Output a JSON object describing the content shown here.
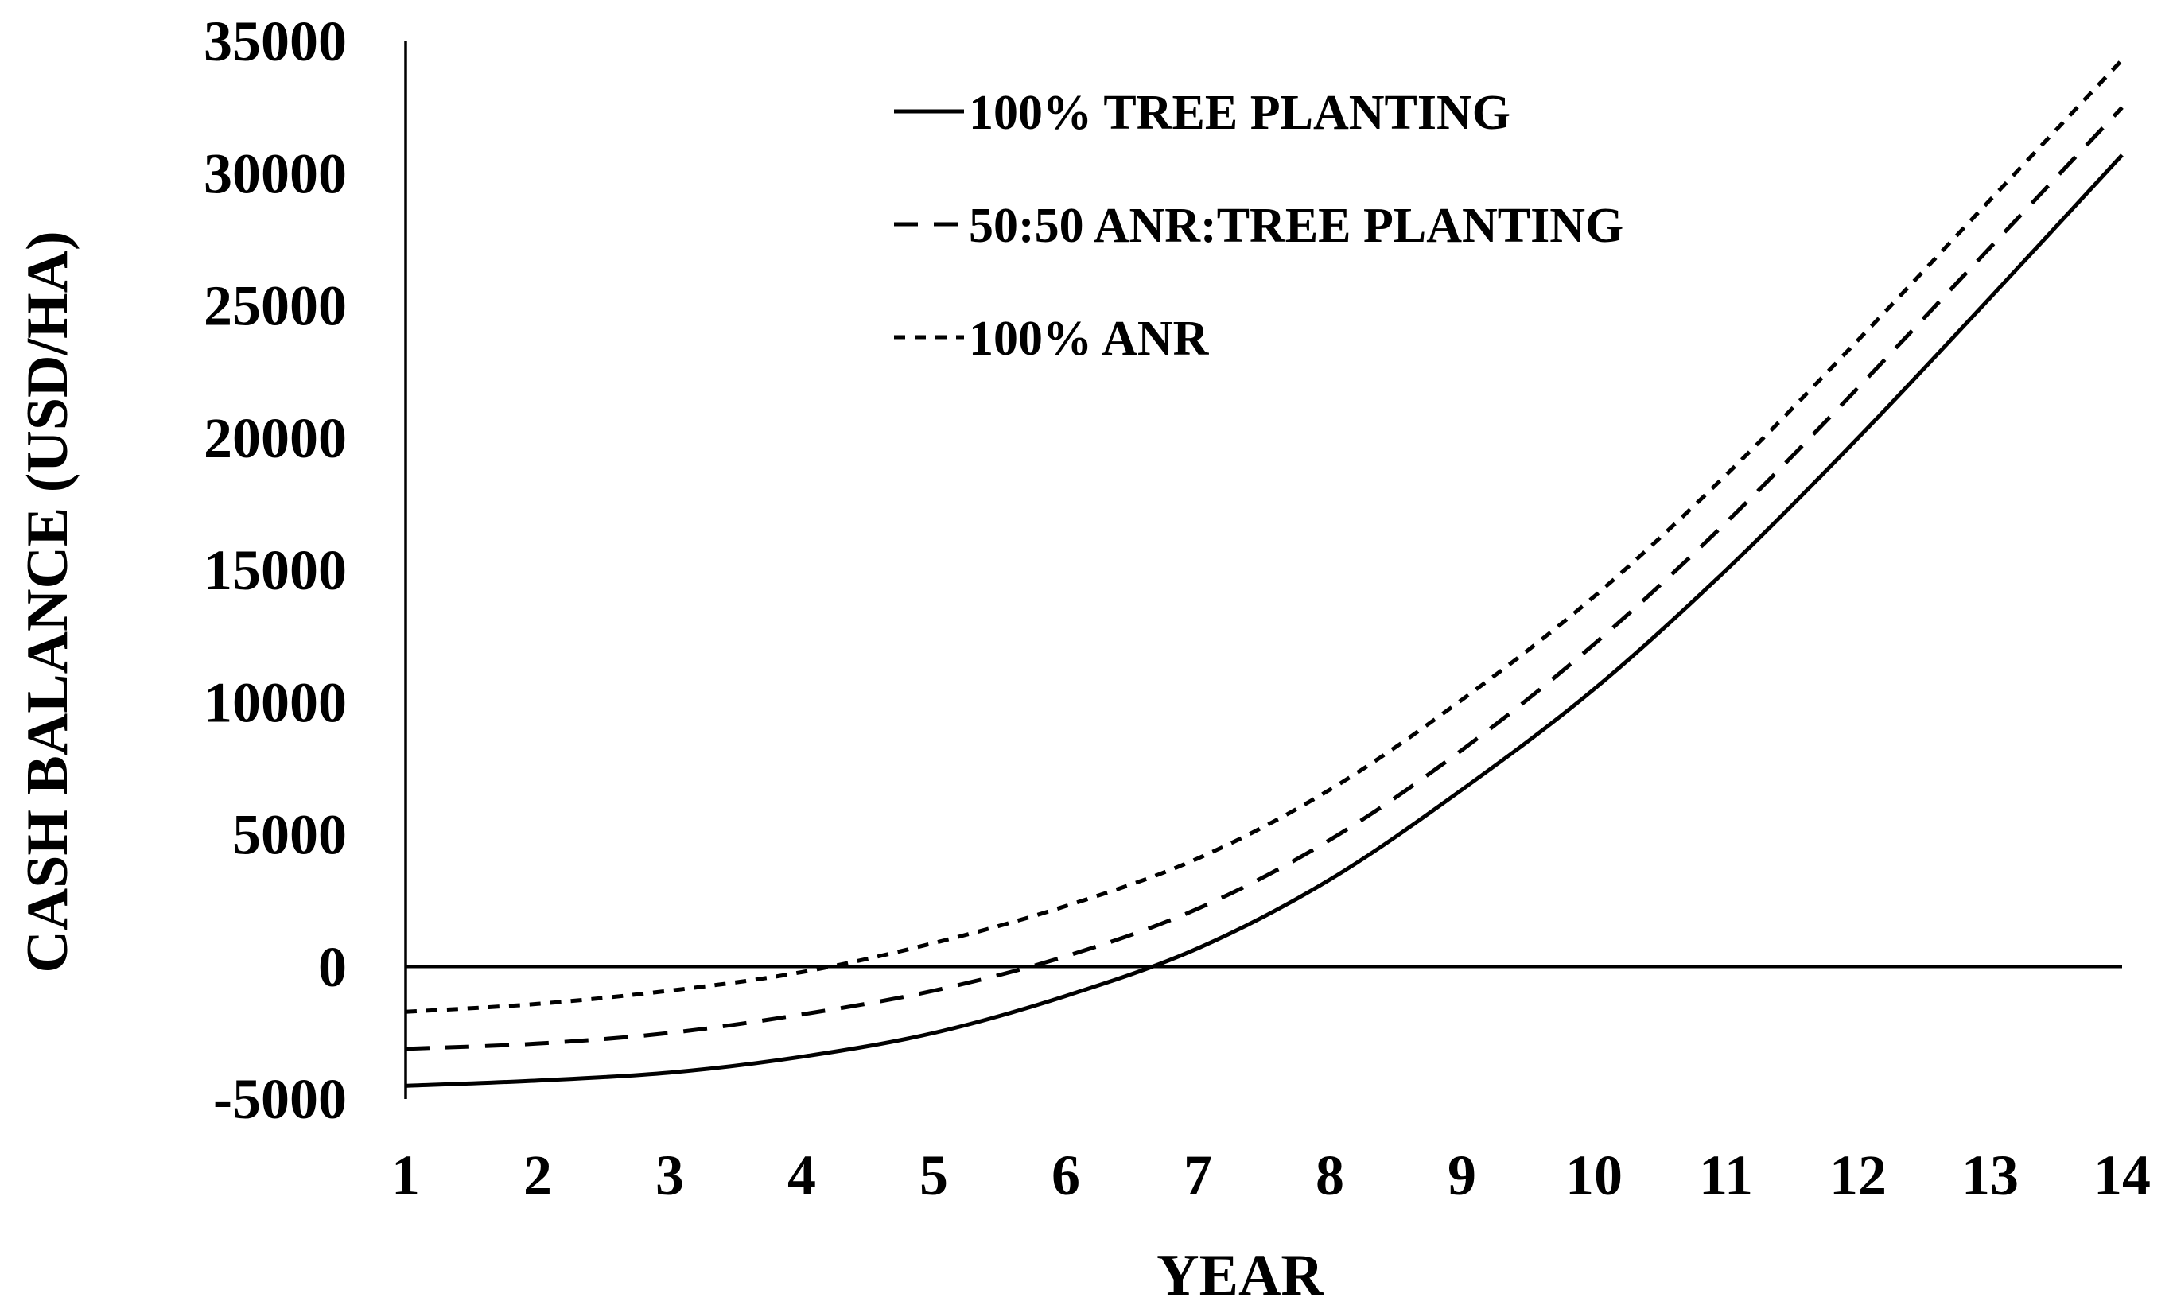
{
  "chart_data": {
    "type": "line",
    "title": "",
    "xlabel": "YEAR",
    "ylabel": "CASH BALANCE (USD/HA)",
    "xlim": [
      1,
      14
    ],
    "ylim": [
      -5000,
      35000
    ],
    "x_ticks": [
      "1",
      "2",
      "3",
      "4",
      "5",
      "6",
      "7",
      "8",
      "9",
      "10",
      "11",
      "12",
      "13",
      "14"
    ],
    "y_ticks": [
      "35000",
      "30000",
      "25000",
      "20000",
      "15000",
      "10000",
      "5000",
      "0",
      "-5000"
    ],
    "grid": false,
    "legend_position": "top-center",
    "x": [
      1,
      2,
      3,
      4,
      5,
      6,
      7,
      8,
      9,
      10,
      11,
      12,
      13,
      14
    ],
    "series": [
      {
        "name": "100% TREE PLANTING",
        "line_style": "solid",
        "values": [
          -4500,
          -4300,
          -4000,
          -3400,
          -2500,
          -1100,
          700,
          3300,
          6700,
          10500,
          15000,
          20000,
          25300,
          30700
        ]
      },
      {
        "name": "50:50 ANR:TREE PLANTING",
        "line_style": "dashed",
        "values": [
          -3100,
          -2900,
          -2500,
          -1800,
          -900,
          400,
          2200,
          4800,
          8200,
          12200,
          16800,
          21900,
          27200,
          32500
        ]
      },
      {
        "name": "100% ANR",
        "line_style": "dotted",
        "values": [
          -1700,
          -1400,
          -900,
          -200,
          900,
          2300,
          4100,
          6700,
          10100,
          14000,
          18600,
          23700,
          29000,
          34300
        ]
      }
    ],
    "colors": {
      "line": "#000000",
      "background": "#ffffff"
    }
  }
}
